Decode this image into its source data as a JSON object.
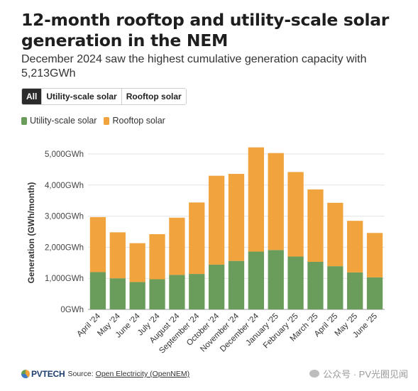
{
  "header": {
    "title": "12-month rooftop and utility-scale solar generation in the NEM",
    "subtitle": "December 2024 saw the highest cumulative generation capacity with 5,213GWh"
  },
  "tabs": [
    {
      "label": "All",
      "active": true
    },
    {
      "label": "Utility-scale solar",
      "active": false
    },
    {
      "label": "Rooftop solar",
      "active": false
    }
  ],
  "legend": [
    {
      "label": "Utility-scale solar",
      "color": "#6a9d5b"
    },
    {
      "label": "Rooftop solar",
      "color": "#f1a33d"
    }
  ],
  "footer": {
    "logo_text": "PVTECH",
    "source_label": "Source:",
    "source_link": "Open Electricity (OpenNEM)",
    "watermark": "公众号 · PV光圈见闻"
  },
  "chart_data": {
    "type": "bar",
    "stacked": true,
    "categories": [
      "April '24",
      "May '24",
      "June '24",
      "July '24",
      "August '24",
      "September '24",
      "October '24",
      "November '24",
      "December '24",
      "January '25",
      "February '25",
      "March '25",
      "April '25",
      "May '25",
      "June '25"
    ],
    "series": [
      {
        "name": "Utility-scale solar",
        "color": "#6a9d5b",
        "values": [
          1200,
          1000,
          880,
          970,
          1110,
          1140,
          1440,
          1560,
          1860,
          1910,
          1700,
          1530,
          1390,
          1190,
          1030
        ]
      },
      {
        "name": "Rooftop solar",
        "color": "#f1a33d",
        "values": [
          1770,
          1480,
          1250,
          1450,
          1840,
          2300,
          2860,
          2800,
          3353,
          3120,
          2720,
          2330,
          2040,
          1660,
          1430
        ]
      }
    ],
    "ylabel": "Generation (GWh/month)",
    "xlabel": "",
    "ylim": [
      0,
      5000
    ],
    "yticks": [
      0,
      1000,
      2000,
      3000,
      4000,
      5000
    ],
    "ytick_labels": [
      "0GWh",
      "1,000GWh",
      "2,000GWh",
      "3,000GWh",
      "4,000GWh",
      "5,000GWh"
    ],
    "grid": true
  }
}
